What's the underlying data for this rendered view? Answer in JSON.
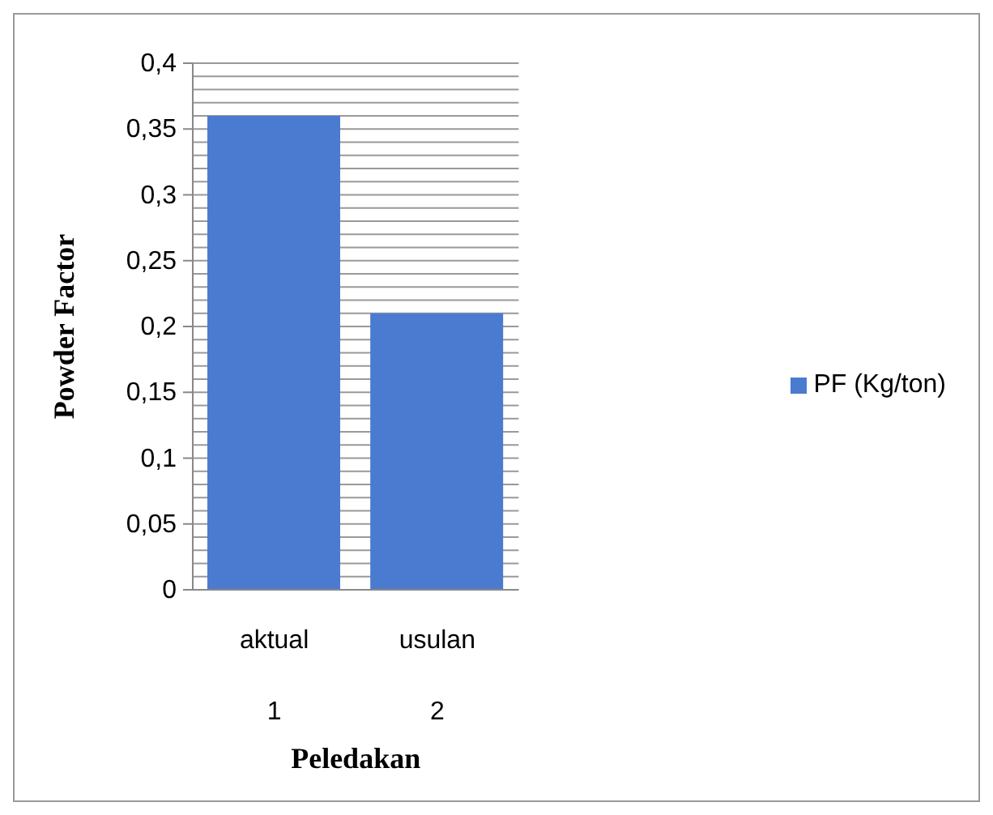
{
  "chart_data": {
    "type": "bar",
    "xlabel": "Peledakan",
    "ylabel": "Powder Factor",
    "categories": [
      "aktual\n1",
      "usulan\n2"
    ],
    "series": [
      {
        "name": "PF (Kg/ton)",
        "color": "#4a7bd0",
        "values": [
          0.36,
          0.21
        ]
      }
    ],
    "ylim": [
      0,
      0.4
    ],
    "yticks": [
      {
        "value": 0,
        "label": "0"
      },
      {
        "value": 0.01,
        "label": null
      },
      {
        "value": 0.02,
        "label": null
      },
      {
        "value": 0.03,
        "label": null
      },
      {
        "value": 0.04,
        "label": null
      },
      {
        "value": 0.05,
        "label": "0,05"
      },
      {
        "value": 0.06,
        "label": null
      },
      {
        "value": 0.07,
        "label": null
      },
      {
        "value": 0.08,
        "label": null
      },
      {
        "value": 0.09,
        "label": null
      },
      {
        "value": 0.1,
        "label": "0,1"
      },
      {
        "value": 0.11,
        "label": null
      },
      {
        "value": 0.12,
        "label": null
      },
      {
        "value": 0.13,
        "label": null
      },
      {
        "value": 0.14,
        "label": null
      },
      {
        "value": 0.15,
        "label": "0,15"
      },
      {
        "value": 0.16,
        "label": null
      },
      {
        "value": 0.17,
        "label": null
      },
      {
        "value": 0.18,
        "label": null
      },
      {
        "value": 0.19,
        "label": null
      },
      {
        "value": 0.2,
        "label": "0,2"
      },
      {
        "value": 0.21,
        "label": null
      },
      {
        "value": 0.22,
        "label": null
      },
      {
        "value": 0.23,
        "label": null
      },
      {
        "value": 0.24,
        "label": null
      },
      {
        "value": 0.25,
        "label": "0,25"
      },
      {
        "value": 0.26,
        "label": null
      },
      {
        "value": 0.27,
        "label": null
      },
      {
        "value": 0.28,
        "label": null
      },
      {
        "value": 0.29,
        "label": null
      },
      {
        "value": 0.3,
        "label": "0,3"
      },
      {
        "value": 0.31,
        "label": null
      },
      {
        "value": 0.32,
        "label": null
      },
      {
        "value": 0.33,
        "label": null
      },
      {
        "value": 0.34,
        "label": null
      },
      {
        "value": 0.35,
        "label": "0,35"
      },
      {
        "value": 0.36,
        "label": null
      },
      {
        "value": 0.37,
        "label": null
      },
      {
        "value": 0.38,
        "label": null
      },
      {
        "value": 0.39,
        "label": null
      },
      {
        "value": 0.4,
        "label": "0,4"
      }
    ],
    "grid": "y",
    "legend": "right"
  }
}
